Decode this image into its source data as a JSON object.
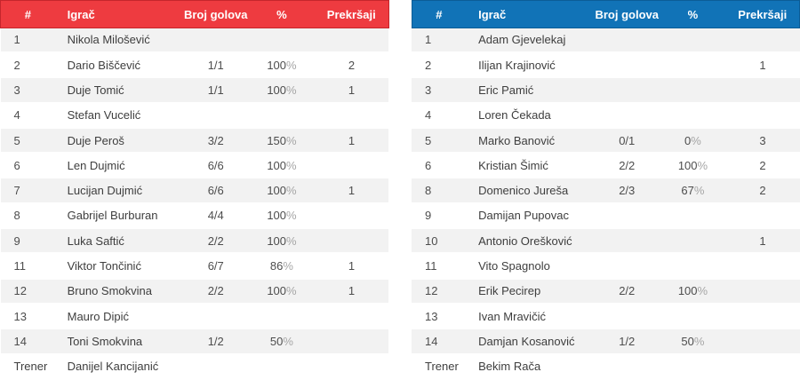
{
  "columns": {
    "num": "#",
    "player": "Igrač",
    "goals": "Broj golova",
    "pct": "%",
    "fouls": "Prekršaji"
  },
  "coach_label": "Trener",
  "colors": {
    "row_stripe": "#f2f2f2",
    "header_text": "#ffffff"
  },
  "teams": [
    {
      "side": "left",
      "colors": {
        "header_bg": "#ee3b40",
        "header_border": "#c5262c"
      },
      "players": [
        {
          "num": "1",
          "name": "Nikola Milošević",
          "goals": "",
          "pct": "",
          "fouls": ""
        },
        {
          "num": "2",
          "name": "Dario Biščević",
          "goals": "1/1",
          "pct": "100%",
          "fouls": "2"
        },
        {
          "num": "3",
          "name": "Duje Tomić",
          "goals": "1/1",
          "pct": "100%",
          "fouls": "1"
        },
        {
          "num": "4",
          "name": "Stefan Vucelić",
          "goals": "",
          "pct": "",
          "fouls": ""
        },
        {
          "num": "5",
          "name": "Duje Peroš",
          "goals": "3/2",
          "pct": "150%",
          "fouls": "1"
        },
        {
          "num": "6",
          "name": "Len Dujmić",
          "goals": "6/6",
          "pct": "100%",
          "fouls": ""
        },
        {
          "num": "7",
          "name": "Lucijan Dujmić",
          "goals": "6/6",
          "pct": "100%",
          "fouls": "1"
        },
        {
          "num": "8",
          "name": "Gabrijel Burburan",
          "goals": "4/4",
          "pct": "100%",
          "fouls": ""
        },
        {
          "num": "9",
          "name": "Luka Saftić",
          "goals": "2/2",
          "pct": "100%",
          "fouls": ""
        },
        {
          "num": "11",
          "name": "Viktor Tončinić",
          "goals": "6/7",
          "pct": "86%",
          "fouls": "1"
        },
        {
          "num": "12",
          "name": "Bruno Smokvina",
          "goals": "2/2",
          "pct": "100%",
          "fouls": "1"
        },
        {
          "num": "13",
          "name": "Mauro Dipić",
          "goals": "",
          "pct": "",
          "fouls": ""
        },
        {
          "num": "14",
          "name": "Toni Smokvina",
          "goals": "1/2",
          "pct": "50%",
          "fouls": ""
        }
      ],
      "coach": "Danijel Kancijanić"
    },
    {
      "side": "right",
      "colors": {
        "header_bg": "#1173b7",
        "header_border": "#0b5d97"
      },
      "players": [
        {
          "num": "1",
          "name": "Adam Gjevelekaj",
          "goals": "",
          "pct": "",
          "fouls": ""
        },
        {
          "num": "2",
          "name": "Ilijan Krajinović",
          "goals": "",
          "pct": "",
          "fouls": "1"
        },
        {
          "num": "3",
          "name": "Eric Pamić",
          "goals": "",
          "pct": "",
          "fouls": ""
        },
        {
          "num": "4",
          "name": "Loren Čekada",
          "goals": "",
          "pct": "",
          "fouls": ""
        },
        {
          "num": "5",
          "name": "Marko Banović",
          "goals": "0/1",
          "pct": "0%",
          "fouls": "3"
        },
        {
          "num": "6",
          "name": "Kristian Šimić",
          "goals": "2/2",
          "pct": "100%",
          "fouls": "2"
        },
        {
          "num": "8",
          "name": "Domenico Jureša",
          "goals": "2/3",
          "pct": "67%",
          "fouls": "2"
        },
        {
          "num": "9",
          "name": "Damijan Pupovac",
          "goals": "",
          "pct": "",
          "fouls": ""
        },
        {
          "num": "10",
          "name": "Antonio Orešković",
          "goals": "",
          "pct": "",
          "fouls": "1"
        },
        {
          "num": "11",
          "name": "Vito Spagnolo",
          "goals": "",
          "pct": "",
          "fouls": ""
        },
        {
          "num": "12",
          "name": "Erik Pecirep",
          "goals": "2/2",
          "pct": "100%",
          "fouls": ""
        },
        {
          "num": "13",
          "name": "Ivan Mravičić",
          "goals": "",
          "pct": "",
          "fouls": ""
        },
        {
          "num": "14",
          "name": "Damjan Kosanović",
          "goals": "1/2",
          "pct": "50%",
          "fouls": ""
        }
      ],
      "coach": "Bekim Rača"
    }
  ]
}
